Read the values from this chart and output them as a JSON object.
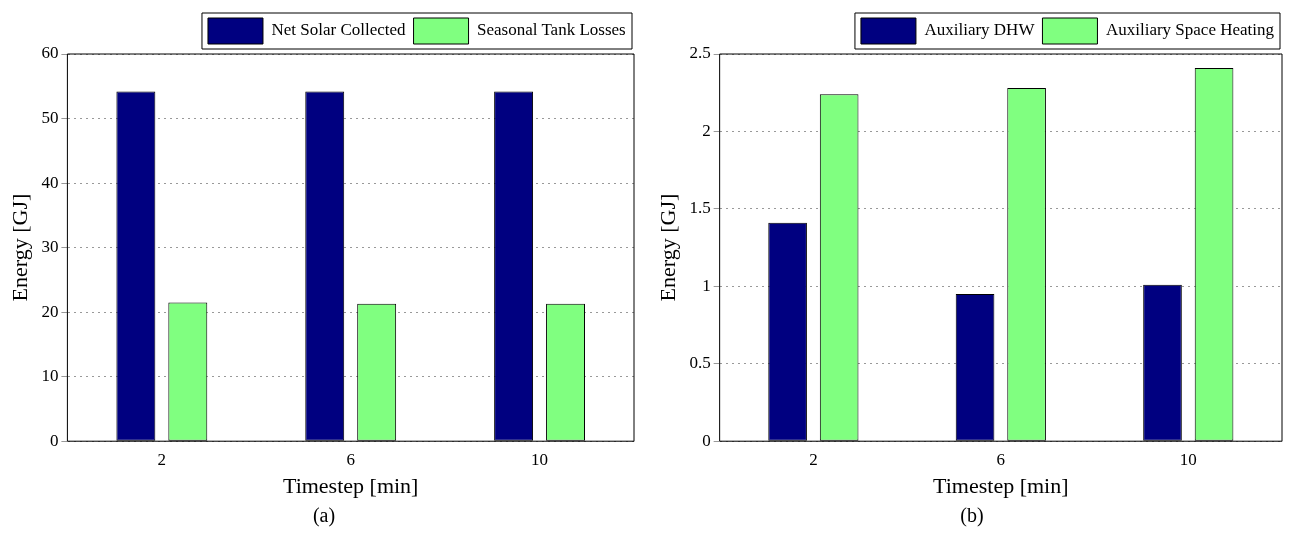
{
  "chart_data": [
    {
      "type": "bar",
      "categories": [
        "2",
        "6",
        "10"
      ],
      "xlabel": "Timestep [min]",
      "ylabel": "Energy [GJ]",
      "ylim": [
        0,
        60
      ],
      "yticks": [
        0,
        10,
        20,
        30,
        40,
        50,
        60
      ],
      "grid": "y",
      "legend": "top right",
      "annotations": [
        "(a)"
      ],
      "series": [
        {
          "name": "Net Solar Collected",
          "color": "#000080",
          "values": [
            54.2,
            54.2,
            54.2
          ]
        },
        {
          "name": "Seasonal Tank Losses",
          "color": "#80ff80",
          "values": [
            21.5,
            21.3,
            21.3
          ]
        }
      ]
    },
    {
      "type": "bar",
      "categories": [
        "2",
        "6",
        "10"
      ],
      "xlabel": "Timestep [min]",
      "ylabel": "Energy [GJ]",
      "ylim": [
        0,
        2.5
      ],
      "yticks": [
        0,
        0.5,
        1,
        1.5,
        2,
        2.5
      ],
      "grid": "y",
      "legend": "top right",
      "annotations": [
        "(b)"
      ],
      "series": [
        {
          "name": "Auxiliary DHW",
          "color": "#000080",
          "values": [
            1.41,
            0.95,
            1.01
          ]
        },
        {
          "name": "Auxiliary Space Heating",
          "color": "#80ff80",
          "values": [
            2.24,
            2.28,
            2.41
          ]
        }
      ]
    }
  ]
}
